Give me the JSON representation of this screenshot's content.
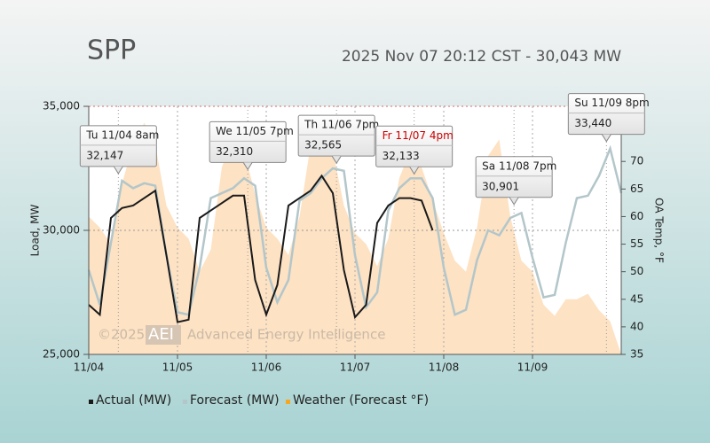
{
  "chart_data": {
    "type": "line",
    "title": "SPP",
    "subtitle": "2025 Nov 07 20:12 CST - 30,043 MW",
    "ylabel": "Load, MW",
    "y2label": "OA Temp, °F",
    "watermark": [
      "©2025",
      "AEI",
      "Advanced Energy Intelligence"
    ],
    "x": [
      0,
      3,
      6,
      9,
      12,
      15,
      18,
      21,
      24,
      27,
      30,
      33,
      36,
      39,
      42,
      45,
      48,
      51,
      54,
      57,
      60,
      63,
      66,
      69,
      72,
      75,
      78,
      81,
      84,
      87,
      90,
      93,
      96,
      99,
      102,
      105,
      108,
      111,
      114,
      117,
      120,
      123,
      126,
      129,
      132,
      135,
      138,
      141,
      144
    ],
    "xlim": [
      0,
      144
    ],
    "xticks": [
      {
        "value": 0,
        "label": "11/04"
      },
      {
        "value": 24,
        "label": "11/05"
      },
      {
        "value": 48,
        "label": "11/06"
      },
      {
        "value": 72,
        "label": "11/07"
      },
      {
        "value": 96,
        "label": "11/08"
      },
      {
        "value": 120,
        "label": "11/09"
      }
    ],
    "ylim": [
      25000,
      35000
    ],
    "yticks": [
      {
        "value": 25000,
        "label": "25,000"
      },
      {
        "value": 30000,
        "label": "30,000"
      },
      {
        "value": 35000,
        "label": "35,000"
      }
    ],
    "y2lim": [
      35,
      80
    ],
    "y2ticks": [
      35,
      40,
      45,
      50,
      55,
      60,
      65,
      70
    ],
    "grid": true,
    "series": [
      {
        "name": "Weather (Forecast °F)",
        "kind": "area",
        "axis": "y2",
        "color": "#fde2c4",
        "values": [
          60,
          58,
          55,
          66,
          73,
          77,
          73,
          62,
          58,
          56,
          50,
          54,
          69,
          74,
          72,
          64,
          58,
          56,
          53,
          60,
          73,
          76,
          72,
          62,
          57,
          55,
          51,
          56,
          67,
          72,
          69,
          63,
          57,
          52,
          50,
          58,
          71,
          74,
          60,
          52,
          50,
          44,
          42,
          45,
          45,
          46,
          43,
          41,
          35
        ]
      },
      {
        "name": "Forecast (MW)",
        "kind": "line",
        "color": "#b3c6ca",
        "values": [
          28400,
          27000,
          29500,
          32000,
          31700,
          31900,
          31800,
          29000,
          26700,
          26600,
          28500,
          31300,
          31500,
          31700,
          32100,
          31800,
          28500,
          27100,
          28000,
          31200,
          31500,
          32100,
          32500,
          32400,
          29000,
          26900,
          27500,
          30800,
          31700,
          32100,
          32100,
          31300,
          28500,
          26600,
          26800,
          28800,
          30000,
          29800,
          30500,
          30700,
          28900,
          27300,
          27400,
          29500,
          31300,
          31400,
          32200,
          33300,
          31500
        ]
      },
      {
        "name": "Actual (MW)",
        "kind": "line",
        "color": "#1a1a1a",
        "values": [
          27000,
          26600,
          30500,
          30900,
          31000,
          31300,
          31600,
          29000,
          26300,
          26400,
          30500,
          30800,
          31100,
          31400,
          31400,
          28000,
          26600,
          27800,
          31000,
          31300,
          31600,
          32200,
          31500,
          28400,
          26500,
          27000,
          30300,
          31000,
          31300,
          31300,
          31200,
          30000,
          null,
          null,
          null,
          null,
          null,
          null,
          null,
          null,
          null,
          null,
          null,
          null,
          null,
          null,
          null,
          null,
          null
        ]
      }
    ],
    "annotations": [
      {
        "label": "Tu 11/04 8am",
        "x": 8,
        "value": 32147,
        "value_label": "32,147",
        "color": "#222222"
      },
      {
        "label": "We 11/05 7pm",
        "x": 43,
        "value": 32310,
        "value_label": "32,310",
        "color": "#222222"
      },
      {
        "label": "Th 11/06 7pm",
        "x": 67,
        "value": 32565,
        "value_label": "32,565",
        "color": "#222222"
      },
      {
        "label": "Fr 11/07 4pm",
        "x": 88,
        "value": 32133,
        "value_label": "32,133",
        "color": "#cc0000"
      },
      {
        "label": "Sa 11/08 7pm",
        "x": 115,
        "value": 30901,
        "value_label": "30,901",
        "color": "#222222"
      },
      {
        "label": "Su 11/09 8pm",
        "x": 140,
        "value": 33440,
        "value_label": "33,440",
        "color": "#222222"
      }
    ]
  }
}
